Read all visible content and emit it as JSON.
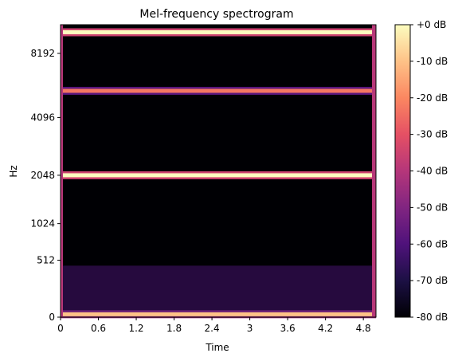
{
  "chart_data": {
    "type": "heatmap",
    "title": "Mel-frequency spectrogram",
    "xlabel": "Time",
    "ylabel": "Hz",
    "x_ticks": [
      "0",
      "0.6",
      "1.2",
      "1.8",
      "2.4",
      "3",
      "3.6",
      "4.2",
      "4.8"
    ],
    "x_tick_values": [
      0,
      0.6,
      1.2,
      1.8,
      2.4,
      3.0,
      3.6,
      4.2,
      4.8
    ],
    "xlim": [
      0,
      5.0
    ],
    "y_scale": "mel",
    "y_ticks": [
      "0",
      "512",
      "1024",
      "2048",
      "4096",
      "8192"
    ],
    "y_tick_values": [
      0,
      512,
      1024,
      2048,
      4096,
      8192
    ],
    "ylim": [
      0,
      11025
    ],
    "colorbar": {
      "ticks": [
        "+0 dB",
        "-10 dB",
        "-20 dB",
        "-30 dB",
        "-40 dB",
        "-50 dB",
        "-60 dB",
        "-70 dB",
        "-80 dB"
      ],
      "range_db": [
        -80,
        0
      ],
      "colormap": "magma"
    },
    "bands": [
      {
        "center_hz": 20,
        "db": -10,
        "kind": "tone"
      },
      {
        "center_hz": 150,
        "db": -62,
        "kind": "spread"
      },
      {
        "center_hz": 2048,
        "db": 0,
        "kind": "tone"
      },
      {
        "center_hz": 5500,
        "db": -23,
        "kind": "tone"
      },
      {
        "center_hz": 10200,
        "db": 0,
        "kind": "tone"
      }
    ],
    "edge_db": -35,
    "background_db": -80
  }
}
